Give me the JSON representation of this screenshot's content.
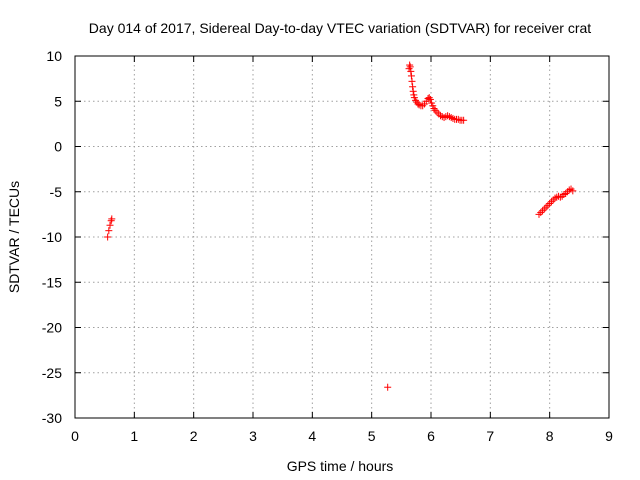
{
  "chart_data": {
    "type": "scatter",
    "title": "Day 014 of 2017, Sidereal Day-to-day VTEC variation (SDTVAR) for receiver crat",
    "xlabel": "GPS time / hours",
    "ylabel": "SDTVAR / TECUs",
    "xlim": [
      0,
      9
    ],
    "ylim": [
      -30,
      10
    ],
    "xticks": [
      0,
      1,
      2,
      3,
      4,
      5,
      6,
      7,
      8,
      9
    ],
    "yticks": [
      -30,
      -25,
      -20,
      -15,
      -10,
      -5,
      0,
      5,
      10
    ],
    "grid": true,
    "marker": "+",
    "series": [
      {
        "name": "SDTVAR",
        "color": "#ff0000",
        "x": [
          0.55,
          0.57,
          0.59,
          0.61,
          0.62,
          5.27,
          5.63,
          5.64,
          5.65,
          5.66,
          5.67,
          5.68,
          5.69,
          5.7,
          5.71,
          5.72,
          5.74,
          5.76,
          5.78,
          5.8,
          5.83,
          5.86,
          5.89,
          5.92,
          5.95,
          5.97,
          5.99,
          6.01,
          6.03,
          6.05,
          6.07,
          6.1,
          6.13,
          6.16,
          6.19,
          6.22,
          6.25,
          6.28,
          6.31,
          6.34,
          6.37,
          6.4,
          6.43,
          6.46,
          6.49,
          6.52,
          6.55,
          7.82,
          7.85,
          7.88,
          7.91,
          7.94,
          7.97,
          8.0,
          8.03,
          8.06,
          8.09,
          8.12,
          8.15,
          8.18,
          8.21,
          8.24,
          8.27,
          8.3,
          8.33,
          8.36,
          8.39
        ],
        "y": [
          -10.0,
          -9.3,
          -8.7,
          -8.2,
          -8.0,
          -26.6,
          8.6,
          9.0,
          8.8,
          8.3,
          7.8,
          7.2,
          6.6,
          6.1,
          5.7,
          5.4,
          5.1,
          4.9,
          4.7,
          4.6,
          4.5,
          4.5,
          4.7,
          5.0,
          5.3,
          5.4,
          5.2,
          4.8,
          4.5,
          4.2,
          4.0,
          3.8,
          3.6,
          3.4,
          3.3,
          3.2,
          3.3,
          3.4,
          3.3,
          3.2,
          3.1,
          3.0,
          3.0,
          3.0,
          2.9,
          2.9,
          2.9,
          -7.5,
          -7.3,
          -7.1,
          -6.9,
          -6.7,
          -6.5,
          -6.3,
          -6.1,
          -5.9,
          -5.7,
          -5.6,
          -5.5,
          -5.6,
          -5.5,
          -5.3,
          -5.2,
          -5.0,
          -4.8,
          -4.7,
          -4.9
        ]
      }
    ]
  }
}
